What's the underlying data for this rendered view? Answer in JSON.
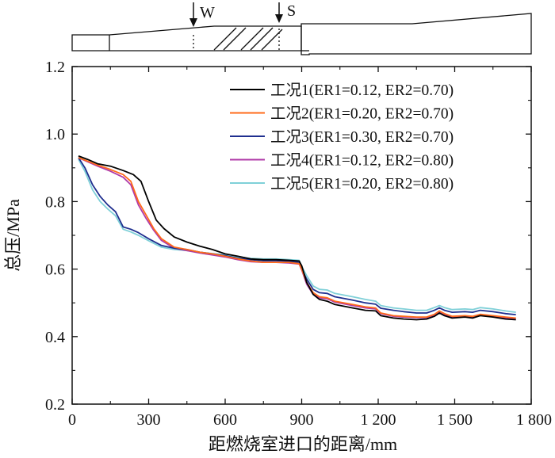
{
  "chart_data": {
    "type": "line",
    "title": "",
    "xlabel": "距燃烧室进口的距离/mm",
    "ylabel": "总压/MPa",
    "xlim": [
      0,
      1800
    ],
    "ylim": [
      0.2,
      1.2
    ],
    "xticks": [
      0,
      300,
      600,
      900,
      1200,
      1500,
      1800
    ],
    "xtick_labels": [
      "0",
      "300",
      "600",
      "900",
      "1 200",
      "1 500",
      "1 800"
    ],
    "yticks": [
      0.2,
      0.4,
      0.6,
      0.8,
      1.0,
      1.2
    ],
    "ytick_labels": [
      "0.2",
      "0.4",
      "0.6",
      "0.8",
      "1.0",
      "1.2"
    ],
    "grid": false,
    "legend_position": "top-right",
    "markers": [
      {
        "label": "W",
        "x": 475
      },
      {
        "label": "S",
        "x": 820
      }
    ],
    "series": [
      {
        "name": "工况1(ER1=0.12, ER2=0.70)",
        "color": "#000000",
        "points": [
          [
            25,
            0.935
          ],
          [
            60,
            0.925
          ],
          [
            100,
            0.912
          ],
          [
            150,
            0.905
          ],
          [
            200,
            0.892
          ],
          [
            240,
            0.88
          ],
          [
            270,
            0.86
          ],
          [
            300,
            0.8
          ],
          [
            330,
            0.745
          ],
          [
            360,
            0.72
          ],
          [
            400,
            0.695
          ],
          [
            450,
            0.68
          ],
          [
            500,
            0.668
          ],
          [
            550,
            0.658
          ],
          [
            600,
            0.645
          ],
          [
            650,
            0.638
          ],
          [
            700,
            0.63
          ],
          [
            750,
            0.628
          ],
          [
            800,
            0.628
          ],
          [
            850,
            0.626
          ],
          [
            890,
            0.624
          ],
          [
            900,
            0.61
          ],
          [
            920,
            0.56
          ],
          [
            945,
            0.525
          ],
          [
            970,
            0.51
          ],
          [
            1000,
            0.505
          ],
          [
            1030,
            0.495
          ],
          [
            1100,
            0.485
          ],
          [
            1150,
            0.478
          ],
          [
            1190,
            0.476
          ],
          [
            1210,
            0.462
          ],
          [
            1260,
            0.455
          ],
          [
            1300,
            0.452
          ],
          [
            1350,
            0.45
          ],
          [
            1390,
            0.452
          ],
          [
            1420,
            0.46
          ],
          [
            1440,
            0.47
          ],
          [
            1460,
            0.462
          ],
          [
            1490,
            0.455
          ],
          [
            1540,
            0.458
          ],
          [
            1570,
            0.455
          ],
          [
            1600,
            0.462
          ],
          [
            1650,
            0.458
          ],
          [
            1700,
            0.452
          ],
          [
            1740,
            0.45
          ]
        ]
      },
      {
        "name": "工况2(ER1=0.20, ER2=0.70)",
        "color": "#ff6a1a",
        "points": [
          [
            25,
            0.93
          ],
          [
            60,
            0.92
          ],
          [
            100,
            0.908
          ],
          [
            150,
            0.895
          ],
          [
            200,
            0.88
          ],
          [
            230,
            0.86
          ],
          [
            260,
            0.8
          ],
          [
            290,
            0.76
          ],
          [
            320,
            0.72
          ],
          [
            350,
            0.69
          ],
          [
            400,
            0.665
          ],
          [
            450,
            0.658
          ],
          [
            500,
            0.65
          ],
          [
            550,
            0.645
          ],
          [
            600,
            0.638
          ],
          [
            650,
            0.63
          ],
          [
            700,
            0.624
          ],
          [
            750,
            0.62
          ],
          [
            800,
            0.62
          ],
          [
            850,
            0.62
          ],
          [
            890,
            0.616
          ],
          [
            900,
            0.6
          ],
          [
            920,
            0.56
          ],
          [
            945,
            0.53
          ],
          [
            970,
            0.518
          ],
          [
            1000,
            0.515
          ],
          [
            1030,
            0.505
          ],
          [
            1100,
            0.495
          ],
          [
            1150,
            0.488
          ],
          [
            1190,
            0.485
          ],
          [
            1210,
            0.47
          ],
          [
            1260,
            0.462
          ],
          [
            1300,
            0.46
          ],
          [
            1350,
            0.458
          ],
          [
            1390,
            0.458
          ],
          [
            1420,
            0.466
          ],
          [
            1440,
            0.476
          ],
          [
            1460,
            0.468
          ],
          [
            1490,
            0.46
          ],
          [
            1540,
            0.462
          ],
          [
            1570,
            0.46
          ],
          [
            1600,
            0.466
          ],
          [
            1650,
            0.462
          ],
          [
            1700,
            0.458
          ],
          [
            1740,
            0.455
          ]
        ]
      },
      {
        "name": "工况3(ER1=0.30, ER2=0.70)",
        "color": "#1f2f8f",
        "points": [
          [
            25,
            0.93
          ],
          [
            50,
            0.9
          ],
          [
            80,
            0.85
          ],
          [
            110,
            0.815
          ],
          [
            140,
            0.79
          ],
          [
            170,
            0.77
          ],
          [
            200,
            0.725
          ],
          [
            230,
            0.718
          ],
          [
            260,
            0.708
          ],
          [
            300,
            0.69
          ],
          [
            350,
            0.67
          ],
          [
            400,
            0.662
          ],
          [
            450,
            0.658
          ],
          [
            500,
            0.65
          ],
          [
            550,
            0.645
          ],
          [
            600,
            0.64
          ],
          [
            650,
            0.632
          ],
          [
            700,
            0.628
          ],
          [
            750,
            0.625
          ],
          [
            800,
            0.625
          ],
          [
            850,
            0.623
          ],
          [
            890,
            0.62
          ],
          [
            900,
            0.6
          ],
          [
            920,
            0.57
          ],
          [
            945,
            0.54
          ],
          [
            970,
            0.53
          ],
          [
            1000,
            0.528
          ],
          [
            1030,
            0.518
          ],
          [
            1100,
            0.508
          ],
          [
            1150,
            0.5
          ],
          [
            1190,
            0.496
          ],
          [
            1210,
            0.484
          ],
          [
            1260,
            0.478
          ],
          [
            1300,
            0.474
          ],
          [
            1350,
            0.47
          ],
          [
            1390,
            0.47
          ],
          [
            1420,
            0.478
          ],
          [
            1440,
            0.485
          ],
          [
            1460,
            0.478
          ],
          [
            1490,
            0.472
          ],
          [
            1540,
            0.474
          ],
          [
            1570,
            0.472
          ],
          [
            1600,
            0.478
          ],
          [
            1650,
            0.474
          ],
          [
            1700,
            0.468
          ],
          [
            1740,
            0.465
          ]
        ]
      },
      {
        "name": "工况4(ER1=0.12, ER2=0.80)",
        "color": "#b03aa8",
        "points": [
          [
            25,
            0.93
          ],
          [
            60,
            0.918
          ],
          [
            100,
            0.905
          ],
          [
            150,
            0.89
          ],
          [
            200,
            0.872
          ],
          [
            230,
            0.85
          ],
          [
            260,
            0.79
          ],
          [
            290,
            0.75
          ],
          [
            320,
            0.715
          ],
          [
            350,
            0.685
          ],
          [
            400,
            0.662
          ],
          [
            450,
            0.655
          ],
          [
            500,
            0.648
          ],
          [
            550,
            0.642
          ],
          [
            600,
            0.636
          ],
          [
            650,
            0.628
          ],
          [
            700,
            0.622
          ],
          [
            750,
            0.62
          ],
          [
            800,
            0.62
          ],
          [
            850,
            0.618
          ],
          [
            890,
            0.615
          ],
          [
            900,
            0.598
          ],
          [
            920,
            0.555
          ],
          [
            945,
            0.525
          ],
          [
            970,
            0.515
          ],
          [
            1000,
            0.512
          ],
          [
            1030,
            0.502
          ],
          [
            1100,
            0.492
          ],
          [
            1150,
            0.485
          ],
          [
            1190,
            0.482
          ],
          [
            1210,
            0.468
          ],
          [
            1260,
            0.46
          ],
          [
            1300,
            0.458
          ],
          [
            1350,
            0.456
          ],
          [
            1390,
            0.456
          ],
          [
            1420,
            0.464
          ],
          [
            1440,
            0.474
          ],
          [
            1460,
            0.466
          ],
          [
            1490,
            0.458
          ],
          [
            1540,
            0.46
          ],
          [
            1570,
            0.458
          ],
          [
            1600,
            0.464
          ],
          [
            1650,
            0.46
          ],
          [
            1700,
            0.455
          ],
          [
            1740,
            0.452
          ]
        ]
      },
      {
        "name": "工况5(ER1=0.20, ER2=0.80)",
        "color": "#7fd0d8",
        "points": [
          [
            25,
            0.925
          ],
          [
            50,
            0.89
          ],
          [
            80,
            0.835
          ],
          [
            110,
            0.8
          ],
          [
            140,
            0.778
          ],
          [
            170,
            0.758
          ],
          [
            200,
            0.718
          ],
          [
            230,
            0.71
          ],
          [
            260,
            0.7
          ],
          [
            300,
            0.684
          ],
          [
            350,
            0.665
          ],
          [
            400,
            0.658
          ],
          [
            450,
            0.655
          ],
          [
            500,
            0.65
          ],
          [
            550,
            0.646
          ],
          [
            600,
            0.642
          ],
          [
            650,
            0.636
          ],
          [
            700,
            0.632
          ],
          [
            750,
            0.63
          ],
          [
            800,
            0.63
          ],
          [
            850,
            0.628
          ],
          [
            890,
            0.626
          ],
          [
            900,
            0.608
          ],
          [
            920,
            0.58
          ],
          [
            945,
            0.55
          ],
          [
            970,
            0.54
          ],
          [
            1000,
            0.538
          ],
          [
            1030,
            0.528
          ],
          [
            1100,
            0.518
          ],
          [
            1150,
            0.51
          ],
          [
            1190,
            0.505
          ],
          [
            1210,
            0.492
          ],
          [
            1260,
            0.485
          ],
          [
            1300,
            0.482
          ],
          [
            1350,
            0.478
          ],
          [
            1390,
            0.478
          ],
          [
            1420,
            0.486
          ],
          [
            1440,
            0.492
          ],
          [
            1460,
            0.486
          ],
          [
            1490,
            0.48
          ],
          [
            1540,
            0.482
          ],
          [
            1570,
            0.48
          ],
          [
            1600,
            0.486
          ],
          [
            1650,
            0.482
          ],
          [
            1700,
            0.476
          ],
          [
            1740,
            0.472
          ]
        ]
      }
    ]
  }
}
